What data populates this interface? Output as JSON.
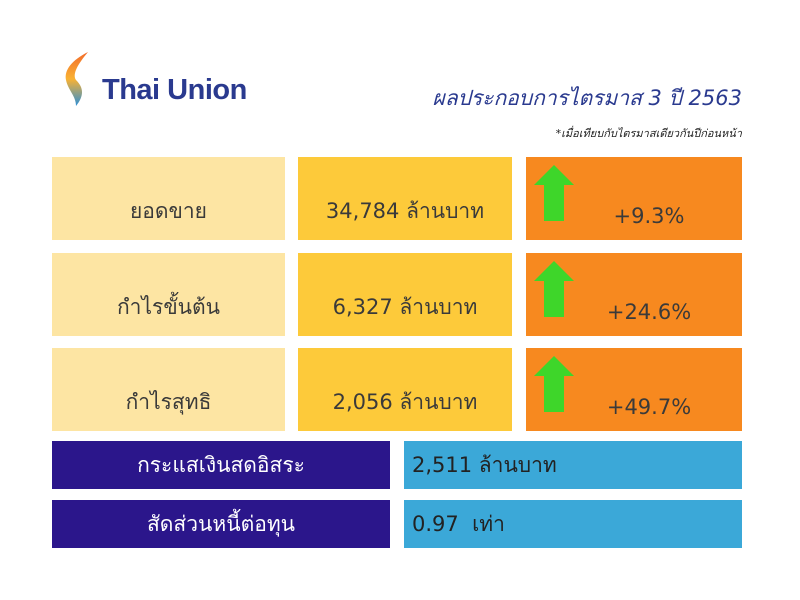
{
  "logo": {
    "text": "Thai Union"
  },
  "title": "ผลประกอบการไตรมาส 3 ปี 2563",
  "note": "*เมื่อเทียบกับไตรมาสเดียวกันปีก่อนหน้า",
  "colors": {
    "label_bg": "#fde5a3",
    "value_bg": "#fdca3a",
    "change_bg": "#f7891f",
    "arrow": "#3ed62a",
    "dark_bg": "#2b168b",
    "blue_bg": "#3ba8d8"
  },
  "metrics": [
    {
      "label": "ยอดขาย",
      "value": "34,784 ล้านบาท",
      "change": "+9.3%",
      "icon": "arrow-up-icon"
    },
    {
      "label": "กำไรขั้นต้น",
      "value": "6,327 ล้านบาท",
      "change": "+24.6%",
      "icon": "arrow-up-icon"
    },
    {
      "label": "กำไรสุทธิ",
      "value": "2,056 ล้านบาท",
      "change": "+49.7%",
      "icon": "arrow-up-icon"
    }
  ],
  "extra": [
    {
      "label": "กระแสเงินสดอิสระ",
      "value": "2,511 ล้านบาท"
    },
    {
      "label": "สัดส่วนหนี้ต่อทุน",
      "value": "0.97  เท่า"
    }
  ]
}
